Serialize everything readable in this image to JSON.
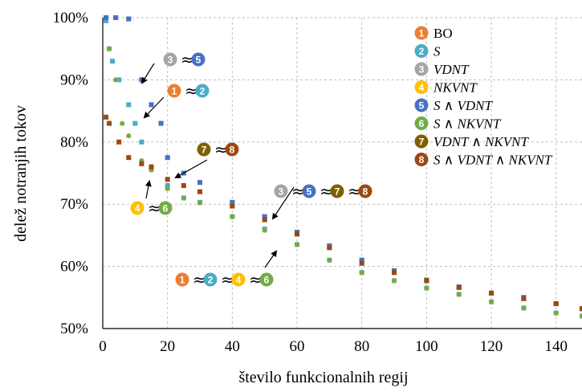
{
  "chart_data": {
    "type": "scatter",
    "title": "",
    "xlabel": "število funkcionalnih regij",
    "ylabel": "delež notranjih tokov",
    "xlim": [
      0,
      148
    ],
    "ylim": [
      50,
      100
    ],
    "x_ticks": [
      "0",
      "20",
      "40",
      "60",
      "80",
      "100",
      "120",
      "140"
    ],
    "y_ticks": [
      "50%",
      "60%",
      "70%",
      "80%",
      "90%",
      "100%"
    ],
    "grid": "dashed, both axes",
    "legend_position": "top-right",
    "series": [
      {
        "name": "BO",
        "badge": "1",
        "color": "#ED7D31",
        "x": [
          1,
          2,
          3,
          5,
          8,
          10,
          12,
          15,
          20,
          25,
          30,
          40,
          50,
          60,
          70,
          80,
          90,
          100,
          110,
          120,
          130,
          140,
          148
        ],
        "y": [
          99.5,
          95,
          93,
          90,
          86,
          83,
          80,
          76,
          73,
          71,
          70.3,
          68,
          66,
          63.5,
          61,
          59,
          57.7,
          56.5,
          55.5,
          54.3,
          53.3,
          52.5,
          52
        ]
      },
      {
        "name": "S",
        "badge": "2",
        "color": "#4BACC6",
        "x": [
          1,
          2,
          3,
          5,
          8,
          10,
          12,
          15,
          20,
          25,
          30,
          40,
          50,
          60,
          70,
          80,
          90,
          100,
          110,
          120,
          130,
          140,
          148
        ],
        "y": [
          99.5,
          95,
          93,
          90,
          86,
          83,
          80,
          76,
          73,
          71,
          70.3,
          68,
          66,
          63.5,
          61,
          59,
          57.7,
          56.5,
          55.5,
          54.3,
          53.3,
          52.5,
          52
        ]
      },
      {
        "name": "VDNT",
        "badge": "3",
        "color": "#A5A5A5",
        "x": [
          1,
          4,
          8,
          12,
          15,
          18,
          20,
          25,
          30,
          40,
          50,
          60,
          70,
          80,
          90,
          100,
          110,
          120,
          130,
          140,
          148
        ],
        "y": [
          100,
          100,
          99.8,
          90,
          86,
          83,
          77.5,
          75,
          73.5,
          70.3,
          68,
          65.5,
          63.3,
          61,
          59.3,
          57.8,
          56.7,
          55.7,
          55,
          54,
          53.2
        ]
      },
      {
        "name": "NKVNT",
        "badge": "4",
        "color": "#FFC000",
        "x": [
          2,
          4,
          6,
          8,
          12,
          15,
          20,
          25,
          30,
          40,
          50,
          60,
          70,
          80,
          90,
          100,
          110,
          120,
          130,
          140,
          148
        ],
        "y": [
          95,
          90,
          83,
          81,
          77,
          75.5,
          72.5,
          71,
          70.2,
          68,
          65.8,
          63.5,
          61,
          59,
          57.7,
          56.5,
          55.5,
          54.3,
          53.3,
          52.5,
          52
        ]
      },
      {
        "name": "S ∧ VDNT",
        "badge": "5",
        "color": "#4472C4",
        "x": [
          1,
          4,
          8,
          12,
          15,
          18,
          20,
          25,
          30,
          40,
          50,
          60,
          70,
          80,
          90,
          100,
          110,
          120,
          130,
          140,
          148
        ],
        "y": [
          100,
          100,
          99.8,
          90,
          86,
          83,
          77.5,
          75,
          73.5,
          70.3,
          68,
          65.5,
          63.3,
          61,
          59.3,
          57.8,
          56.7,
          55.7,
          55,
          54,
          53.2
        ]
      },
      {
        "name": "S ∧ NKVNT",
        "badge": "6",
        "color": "#70AD47",
        "x": [
          2,
          4,
          6,
          8,
          12,
          15,
          20,
          25,
          30,
          40,
          50,
          60,
          70,
          80,
          90,
          100,
          110,
          120,
          130,
          140,
          148
        ],
        "y": [
          95,
          90,
          83,
          81,
          77,
          75.5,
          72.5,
          71,
          70.2,
          68,
          65.8,
          63.5,
          61,
          59,
          57.7,
          56.5,
          55.5,
          54.3,
          53.3,
          52.5,
          52
        ]
      },
      {
        "name": "VDNT ∧ NKVNT",
        "badge": "7",
        "color": "#7F6000",
        "x": [
          1,
          2,
          5,
          8,
          12,
          15,
          20,
          25,
          30,
          40,
          50,
          60,
          70,
          80,
          90,
          100,
          110,
          120,
          130,
          140,
          148
        ],
        "y": [
          84,
          83,
          80,
          77.5,
          76.5,
          76,
          74,
          73,
          72,
          69.7,
          67.5,
          65.2,
          63,
          60.5,
          59,
          57.7,
          56.6,
          55.7,
          54.8,
          54,
          53.2
        ]
      },
      {
        "name": "S ∧ VDNT ∧ NKVNT",
        "badge": "8",
        "color": "#9E480E",
        "x": [
          1,
          2,
          5,
          8,
          12,
          15,
          20,
          25,
          30,
          40,
          50,
          60,
          70,
          80,
          90,
          100,
          110,
          120,
          130,
          140,
          148
        ],
        "y": [
          84,
          83,
          80,
          77.5,
          76.5,
          76,
          74,
          73,
          72,
          69.7,
          67.5,
          65.2,
          63,
          60.5,
          59,
          57.7,
          56.6,
          55.7,
          54.8,
          54,
          53.2
        ]
      }
    ],
    "annotations": [
      {
        "label": "3≈5",
        "badges": [
          "3",
          "5"
        ]
      },
      {
        "label": "1≈2",
        "badges": [
          "1",
          "2"
        ]
      },
      {
        "label": "7≈8",
        "badges": [
          "7",
          "8"
        ]
      },
      {
        "label": "4≈6",
        "badges": [
          "4",
          "6"
        ]
      },
      {
        "label": "3≈5≈7≈8",
        "badges": [
          "3",
          "5",
          "7",
          "8"
        ]
      },
      {
        "label": "1≈2≈4≈6",
        "badges": [
          "1",
          "2",
          "4",
          "6"
        ]
      }
    ]
  }
}
